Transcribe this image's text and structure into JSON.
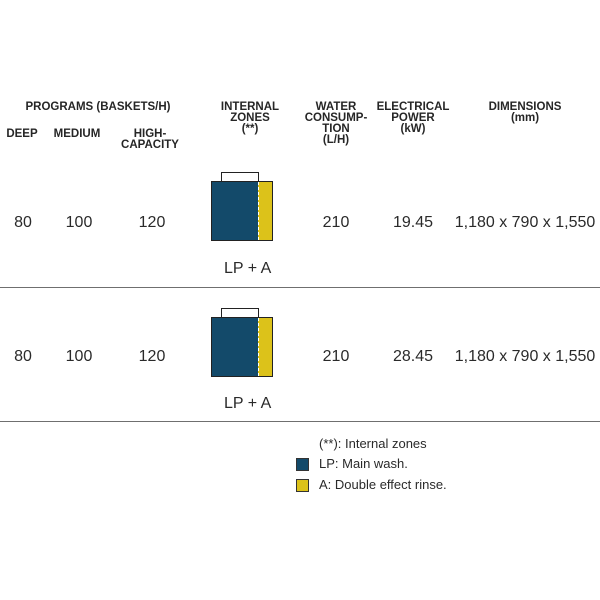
{
  "header": {
    "programs_group": "PROGRAMS (BASKETS/H)",
    "deep": "DEEP",
    "medium": "MEDIUM",
    "high_capacity": [
      "HIGH-",
      "CAPACITY"
    ],
    "internal_zones": [
      "INTERNAL",
      "ZONES",
      "(**)"
    ],
    "water": [
      "WATER",
      "CONSUMP-",
      "TION",
      "(L/H)"
    ],
    "power": [
      "ELECTRICAL",
      "POWER",
      "(kW)"
    ],
    "dimensions": [
      "DIMENSIONS",
      "(mm)"
    ]
  },
  "rows": [
    {
      "deep": "80",
      "medium": "100",
      "high_capacity": "120",
      "zones_label": "LP + A",
      "water": "210",
      "power": "19.45",
      "dimensions": "1,180 x 790 x 1,550"
    },
    {
      "deep": "80",
      "medium": "100",
      "high_capacity": "120",
      "zones_label": "LP + A",
      "water": "210",
      "power": "28.45",
      "dimensions": "1,180 x 790 x 1,550"
    }
  ],
  "legend": {
    "note": "(**): Internal zones",
    "lp": "LP: Main wash.",
    "a": "A: Double effect rinse."
  },
  "colors": {
    "lp": "#134a6a",
    "a": "#dcc21a"
  }
}
